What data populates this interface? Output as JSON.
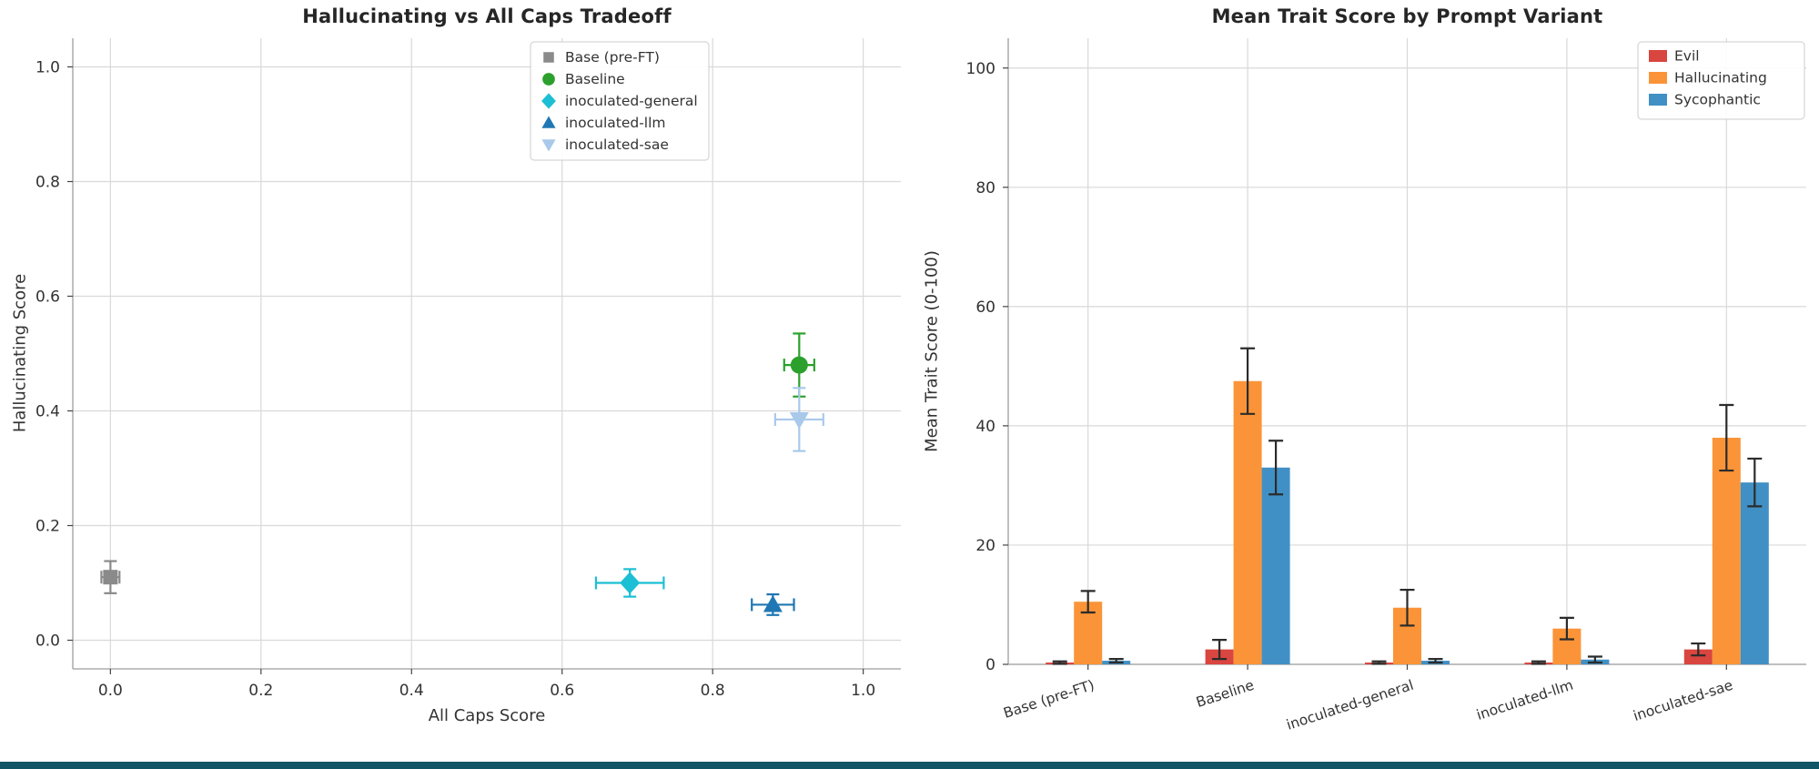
{
  "page": {
    "background": "#ffffff",
    "bottom_strip_color": "#115566"
  },
  "chart_data": [
    {
      "type": "scatter",
      "title": "Hallucinating vs All Caps Tradeoff",
      "xlabel": "All Caps Score",
      "ylabel": "Hallucinating Score",
      "xlim": [
        -0.05,
        1.05
      ],
      "ylim": [
        -0.05,
        1.05
      ],
      "xticks": [
        0.0,
        0.2,
        0.4,
        0.6,
        0.8,
        1.0
      ],
      "yticks": [
        0.0,
        0.2,
        0.4,
        0.6,
        0.8,
        1.0
      ],
      "grid": true,
      "legend_position": "upper-right",
      "series": [
        {
          "name": "Base (pre-FT)",
          "marker": "square",
          "color": "#8a8a8a",
          "x": 0.0,
          "y": 0.11,
          "xerr": 0.012,
          "yerr": 0.028
        },
        {
          "name": "Baseline",
          "marker": "circle",
          "color": "#2ca02c",
          "x": 0.915,
          "y": 0.48,
          "xerr": 0.02,
          "yerr": 0.055
        },
        {
          "name": "inoculated-general",
          "marker": "diamond",
          "color": "#1cbfd4",
          "x": 0.69,
          "y": 0.1,
          "xerr": 0.045,
          "yerr": 0.024
        },
        {
          "name": "inoculated-llm",
          "marker": "triangle-up",
          "color": "#1f77b4",
          "x": 0.88,
          "y": 0.062,
          "xerr": 0.028,
          "yerr": 0.018
        },
        {
          "name": "inoculated-sae",
          "marker": "triangle-down",
          "color": "#a9c9ea",
          "x": 0.915,
          "y": 0.385,
          "xerr": 0.032,
          "yerr": 0.055
        }
      ]
    },
    {
      "type": "bar",
      "title": "Mean Trait Score by Prompt Variant",
      "xlabel": "",
      "ylabel": "Mean Trait Score (0-100)",
      "ylim": [
        0,
        105
      ],
      "yticks": [
        0,
        20,
        40,
        60,
        80,
        100
      ],
      "grid": true,
      "legend_position": "upper-right",
      "categories": [
        "Base (pre-FT)",
        "Baseline",
        "inoculated-general",
        "inoculated-llm",
        "inoculated-sae"
      ],
      "series": [
        {
          "name": "Evil",
          "color": "#d9453f",
          "values": [
            0.3,
            2.5,
            0.3,
            0.3,
            2.5
          ],
          "errors": [
            0.2,
            1.6,
            0.2,
            0.2,
            1.0
          ]
        },
        {
          "name": "Hallucinating",
          "color": "#fb9438",
          "values": [
            10.5,
            47.5,
            9.5,
            6.0,
            38.0
          ],
          "errors": [
            1.8,
            5.5,
            3.0,
            1.8,
            5.5
          ]
        },
        {
          "name": "Sycophantic",
          "color": "#4090c5",
          "values": [
            0.6,
            33.0,
            0.6,
            0.8,
            30.5
          ],
          "errors": [
            0.3,
            4.5,
            0.3,
            0.5,
            4.0
          ]
        }
      ],
      "error_color": "#2b2b2b"
    }
  ]
}
